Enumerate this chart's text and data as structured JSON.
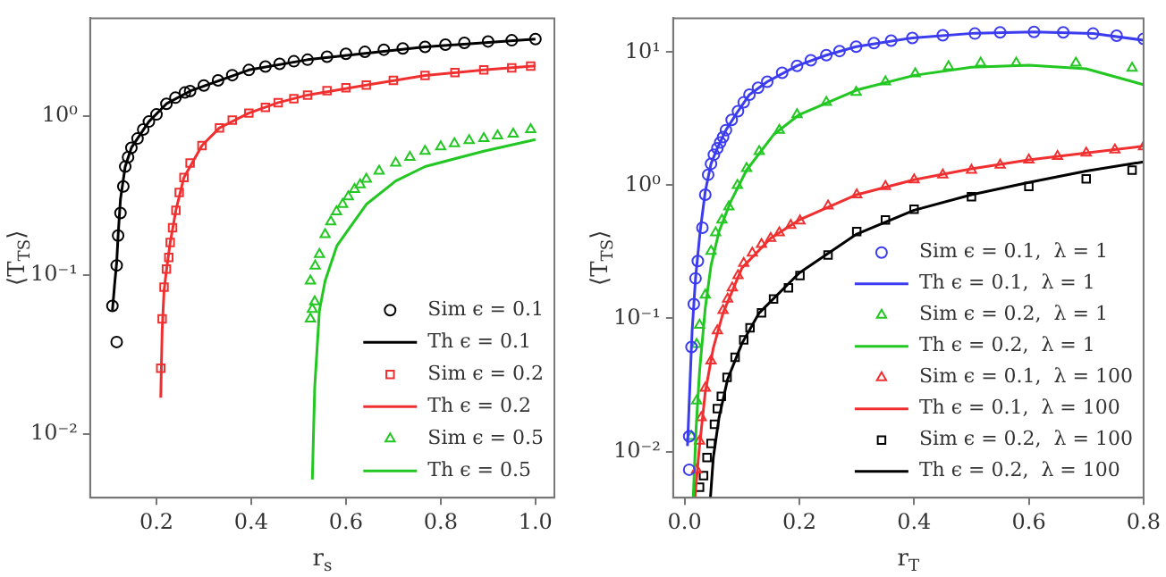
{
  "chart_data": [
    {
      "type": "scatter",
      "xlabel": "r$_{s}$",
      "ylabel": "⟨T$_{TS}$⟩",
      "log": "y",
      "legend": "bottom right",
      "grid": false,
      "xlim": [
        0.06,
        1.04
      ],
      "xticks": [
        0.2,
        0.4,
        0.6,
        0.8,
        {
          "value": 1,
          "label": "1.0"
        }
      ],
      "ylim": [
        0.004,
        4.1
      ],
      "yticks": [
        {
          "value": 0.01,
          "label": "10⁻²"
        },
        {
          "value": 0.1,
          "label": "10⁻¹"
        },
        {
          "value": 1,
          "label": "10⁰"
        }
      ],
      "series": [
        {
          "name": "Sim ϵ = 0.1",
          "type": "scatter",
          "marker": "circle",
          "color": "#000000",
          "x": [
            0.107,
            0.116,
            0.116,
            0.119,
            0.124,
            0.13,
            0.134,
            0.14,
            0.147,
            0.16,
            0.172,
            0.184,
            0.2,
            0.221,
            0.24,
            0.26,
            0.271,
            0.3,
            0.33,
            0.36,
            0.395,
            0.43,
            0.46,
            0.49,
            0.519,
            0.56,
            0.6,
            0.64,
            0.68,
            0.72,
            0.767,
            0.81,
            0.85,
            0.9,
            0.95,
            1.0
          ],
          "values": [
            0.064,
            0.038,
            0.115,
            0.177,
            0.245,
            0.36,
            0.48,
            0.55,
            0.63,
            0.72,
            0.82,
            0.92,
            1.02,
            1.19,
            1.3,
            1.4,
            1.43,
            1.55,
            1.67,
            1.8,
            1.94,
            2.04,
            2.12,
            2.2,
            2.25,
            2.35,
            2.45,
            2.52,
            2.6,
            2.65,
            2.71,
            2.8,
            2.87,
            2.93,
            2.98,
            3.03
          ]
        },
        {
          "name": "Th ϵ = 0.1",
          "type": "line",
          "marker": "none",
          "color": "#000000",
          "x": [
            0.107,
            0.112,
            0.116,
            0.119,
            0.124,
            0.134,
            0.147,
            0.184,
            0.221,
            0.271,
            0.395,
            0.519,
            0.767,
            1.0
          ],
          "values": [
            0.06,
            0.09,
            0.12,
            0.177,
            0.3,
            0.48,
            0.63,
            0.92,
            1.19,
            1.43,
            1.94,
            2.25,
            2.71,
            3.03
          ]
        },
        {
          "name": "Sim ϵ = 0.2",
          "type": "scatter",
          "marker": "square",
          "color": "#f03030",
          "x": [
            0.209,
            0.212,
            0.216,
            0.221,
            0.226,
            0.229,
            0.234,
            0.241,
            0.248,
            0.258,
            0.271,
            0.296,
            0.333,
            0.36,
            0.395,
            0.43,
            0.457,
            0.49,
            0.519,
            0.56,
            0.6,
            0.643,
            0.7,
            0.767,
            0.83,
            0.891,
            0.95,
            0.99
          ],
          "values": [
            0.026,
            0.053,
            0.084,
            0.109,
            0.129,
            0.16,
            0.198,
            0.255,
            0.33,
            0.41,
            0.505,
            0.65,
            0.84,
            0.94,
            1.04,
            1.13,
            1.21,
            1.28,
            1.35,
            1.44,
            1.5,
            1.56,
            1.67,
            1.79,
            1.87,
            1.94,
            2.0,
            2.05
          ]
        },
        {
          "name": "Th ϵ = 0.2",
          "type": "line",
          "marker": "none",
          "color": "#f03030",
          "x": [
            0.209,
            0.212,
            0.216,
            0.221,
            0.229,
            0.241,
            0.258,
            0.296,
            0.333,
            0.395,
            0.457,
            0.519,
            0.643,
            0.767,
            0.891,
            1.0
          ],
          "values": [
            0.017,
            0.045,
            0.08,
            0.107,
            0.16,
            0.255,
            0.41,
            0.65,
            0.84,
            1.04,
            1.21,
            1.35,
            1.56,
            1.79,
            1.94,
            2.06
          ]
        },
        {
          "name": "Sim ϵ = 0.5",
          "type": "scatter",
          "marker": "triangle",
          "color": "#22c722",
          "x": [
            0.525,
            0.529,
            0.534,
            0.525,
            0.535,
            0.544,
            0.556,
            0.568,
            0.58,
            0.593,
            0.605,
            0.618,
            0.63,
            0.643,
            0.67,
            0.705,
            0.735,
            0.767,
            0.8,
            0.829,
            0.86,
            0.891,
            0.92,
            0.953,
            0.99
          ],
          "values": [
            0.053,
            0.061,
            0.068,
            0.092,
            0.114,
            0.135,
            0.18,
            0.216,
            0.25,
            0.278,
            0.31,
            0.345,
            0.37,
            0.4,
            0.45,
            0.505,
            0.55,
            0.6,
            0.64,
            0.67,
            0.7,
            0.72,
            0.75,
            0.77,
            0.82
          ]
        },
        {
          "name": "Th ϵ = 0.5",
          "type": "line",
          "marker": "none",
          "color": "#22c722",
          "x": [
            0.529,
            0.534,
            0.544,
            0.556,
            0.581,
            0.643,
            0.705,
            0.767,
            0.891,
            1.0
          ],
          "values": [
            0.0052,
            0.0196,
            0.06,
            0.092,
            0.153,
            0.278,
            0.39,
            0.48,
            0.6,
            0.71
          ]
        }
      ]
    },
    {
      "type": "scatter",
      "xlabel": "r$_{T}$",
      "ylabel": "⟨T$_{TS}$⟩",
      "log": "y",
      "legend": "bottom right",
      "grid": false,
      "xlim": [
        -0.02,
        0.8
      ],
      "xticks": [
        {
          "value": 0,
          "label": "0.0"
        },
        0.2,
        0.4,
        0.6,
        0.8
      ],
      "ylim": [
        0.0045,
        18
      ],
      "yticks": [
        {
          "value": 0.01,
          "label": "10⁻²"
        },
        {
          "value": 0.1,
          "label": "10⁻¹"
        },
        {
          "value": 1,
          "label": "10⁰"
        },
        {
          "value": 10,
          "label": "10¹"
        }
      ],
      "series": [
        {
          "name": "Sim ϵ = 0.1,  λ = 1",
          "type": "scatter",
          "marker": "circle",
          "color": "#3b3bf0",
          "x": [
            0.008,
            0.008,
            0.012,
            0.016,
            0.019,
            0.023,
            0.031,
            0.036,
            0.041,
            0.046,
            0.051,
            0.057,
            0.062,
            0.067,
            0.072,
            0.082,
            0.093,
            0.103,
            0.113,
            0.128,
            0.144,
            0.17,
            0.196,
            0.22,
            0.247,
            0.27,
            0.299,
            0.33,
            0.36,
            0.397,
            0.45,
            0.506,
            0.55,
            0.609,
            0.66,
            0.712,
            0.753,
            0.8
          ],
          "values": [
            0.0073,
            0.013,
            0.061,
            0.128,
            0.2,
            0.27,
            0.48,
            0.85,
            1.2,
            1.45,
            1.7,
            1.9,
            2.1,
            2.3,
            2.6,
            3.1,
            3.6,
            4.2,
            4.8,
            5.4,
            6.0,
            7.0,
            7.9,
            8.7,
            9.5,
            10.2,
            11,
            11.7,
            12.2,
            12.8,
            13.4,
            13.8,
            14.1,
            14.2,
            14.1,
            13.8,
            13.3,
            12.6
          ]
        },
        {
          "name": "Th ϵ = 0.1,  λ = 1",
          "type": "line",
          "marker": "none",
          "color": "#3b3bf0",
          "x": [
            0.005,
            0.009,
            0.013,
            0.019,
            0.027,
            0.036,
            0.046,
            0.057,
            0.072,
            0.093,
            0.113,
            0.144,
            0.196,
            0.247,
            0.299,
            0.397,
            0.506,
            0.609,
            0.712,
            0.8
          ],
          "values": [
            0.011,
            0.03,
            0.08,
            0.2,
            0.45,
            0.9,
            1.45,
            1.9,
            2.6,
            3.6,
            4.8,
            6.0,
            7.9,
            9.5,
            11,
            12.8,
            13.9,
            14.2,
            13.8,
            12.3
          ]
        },
        {
          "name": "Sim ϵ = 0.2,  λ = 1",
          "type": "scatter",
          "marker": "triangle",
          "color": "#22c722",
          "x": [
            0.012,
            0.021,
            0.021,
            0.026,
            0.036,
            0.046,
            0.054,
            0.065,
            0.077,
            0.092,
            0.108,
            0.13,
            0.165,
            0.196,
            0.247,
            0.299,
            0.35,
            0.402,
            0.46,
            0.516,
            0.578,
            0.682,
            0.78
          ],
          "values": [
            0.013,
            0.024,
            0.064,
            0.089,
            0.15,
            0.32,
            0.44,
            0.55,
            0.69,
            1.0,
            1.34,
            1.8,
            2.6,
            3.4,
            4.2,
            5.0,
            6.0,
            6.9,
            7.8,
            8.3,
            8.3,
            8.3,
            7.6
          ]
        },
        {
          "name": "Th ϵ = 0.2,  λ = 1",
          "type": "line",
          "marker": "none",
          "color": "#22c722",
          "x": [
            0.015,
            0.02,
            0.026,
            0.036,
            0.046,
            0.06,
            0.08,
            0.108,
            0.155,
            0.2,
            0.3,
            0.4,
            0.5,
            0.6,
            0.7,
            0.8
          ],
          "values": [
            0.0045,
            0.015,
            0.04,
            0.12,
            0.25,
            0.45,
            0.75,
            1.3,
            2.4,
            3.4,
            5.2,
            6.7,
            7.7,
            8.0,
            7.5,
            5.7
          ]
        },
        {
          "name": "Sim ϵ = 0.1,  λ = 100",
          "type": "scatter",
          "marker": "triangle",
          "color": "#f03030",
          "x": [
            0.021,
            0.026,
            0.029,
            0.036,
            0.046,
            0.057,
            0.067,
            0.075,
            0.083,
            0.093,
            0.103,
            0.118,
            0.134,
            0.15,
            0.165,
            0.185,
            0.201,
            0.25,
            0.3,
            0.35,
            0.4,
            0.45,
            0.5,
            0.55,
            0.6,
            0.65,
            0.7,
            0.75,
            0.8
          ],
          "values": [
            0.0073,
            0.012,
            0.018,
            0.03,
            0.048,
            0.081,
            0.115,
            0.14,
            0.17,
            0.21,
            0.26,
            0.31,
            0.36,
            0.4,
            0.44,
            0.5,
            0.54,
            0.7,
            0.85,
            0.98,
            1.1,
            1.2,
            1.3,
            1.42,
            1.55,
            1.65,
            1.75,
            1.85,
            1.95
          ]
        },
        {
          "name": "Th ϵ = 0.1,  λ = 100",
          "type": "line",
          "marker": "none",
          "color": "#f03030",
          "x": [
            0.018,
            0.025,
            0.036,
            0.05,
            0.067,
            0.1,
            0.15,
            0.2,
            0.3,
            0.4,
            0.5,
            0.6,
            0.7,
            0.8
          ],
          "values": [
            0.0045,
            0.01,
            0.028,
            0.06,
            0.11,
            0.24,
            0.4,
            0.55,
            0.85,
            1.1,
            1.33,
            1.55,
            1.75,
            1.97
          ]
        },
        {
          "name": "Sim ϵ = 0.2,  λ = 100",
          "type": "scatter",
          "marker": "square",
          "color": "#000000",
          "x": [
            0.026,
            0.033,
            0.039,
            0.046,
            0.052,
            0.057,
            0.064,
            0.074,
            0.088,
            0.103,
            0.114,
            0.134,
            0.155,
            0.181,
            0.201,
            0.25,
            0.3,
            0.35,
            0.4,
            0.5,
            0.6,
            0.7,
            0.78
          ],
          "values": [
            0.0054,
            0.0066,
            0.009,
            0.0115,
            0.016,
            0.021,
            0.026,
            0.036,
            0.051,
            0.069,
            0.085,
            0.11,
            0.14,
            0.17,
            0.21,
            0.3,
            0.45,
            0.55,
            0.66,
            0.82,
            0.98,
            1.12,
            1.3
          ]
        },
        {
          "name": "Th ϵ = 0.2,  λ = 100",
          "type": "line",
          "marker": "none",
          "color": "#000000",
          "x": [
            0.045,
            0.05,
            0.06,
            0.075,
            0.1,
            0.13,
            0.2,
            0.3,
            0.4,
            0.5,
            0.6,
            0.7,
            0.8
          ],
          "values": [
            0.0045,
            0.009,
            0.018,
            0.035,
            0.065,
            0.11,
            0.22,
            0.43,
            0.65,
            0.85,
            1.05,
            1.28,
            1.5
          ]
        }
      ]
    }
  ]
}
